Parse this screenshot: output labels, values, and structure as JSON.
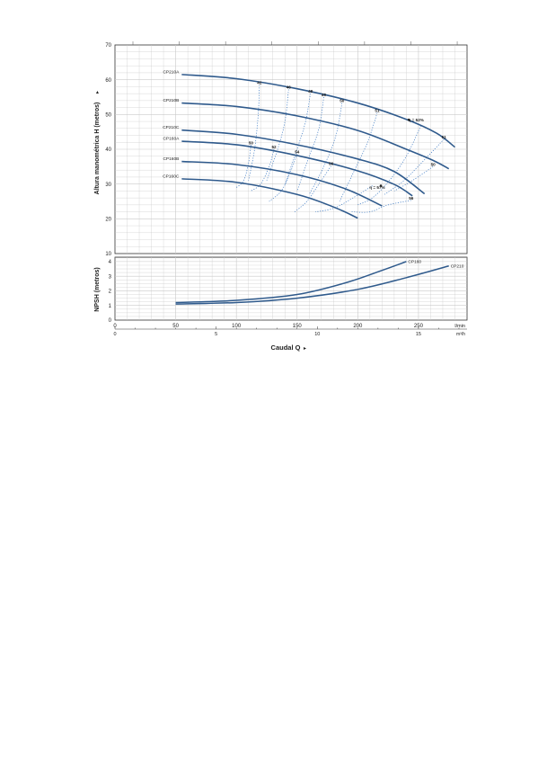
{
  "chart_data": [
    {
      "type": "line",
      "ylabel": "Altura manométrica H (metros)",
      "ylim": [
        10,
        70
      ],
      "xlim": [
        0,
        290
      ],
      "yticks": [
        10,
        20,
        30,
        40,
        50,
        60,
        70
      ],
      "grid": true,
      "colors": {
        "curve": "#2f5a8c",
        "efficiency": "#3a78c2",
        "grid": "#c9c9c9"
      },
      "series": [
        {
          "name": "CP210A",
          "points": [
            [
              55,
              61.5
            ],
            [
              100,
              60.3
            ],
            [
              150,
              57.4
            ],
            [
              200,
              53.3
            ],
            [
              240,
              48.6
            ],
            [
              265,
              44.6
            ],
            [
              280,
              40.6
            ]
          ]
        },
        {
          "name": "CP210B",
          "points": [
            [
              55,
              53.3
            ],
            [
              100,
              52.3
            ],
            [
              150,
              49.6
            ],
            [
              200,
              45.4
            ],
            [
              240,
              40.0
            ],
            [
              262,
              36.8
            ],
            [
              275,
              34.4
            ]
          ]
        },
        {
          "name": "CP210C",
          "points": [
            [
              55,
              45.5
            ],
            [
              100,
              44.3
            ],
            [
              150,
              41.3
            ],
            [
              200,
              37.2
            ],
            [
              230,
              33.6
            ],
            [
              255,
              27.2
            ]
          ]
        },
        {
          "name": "CP160A",
          "points": [
            [
              55,
              42.3
            ],
            [
              100,
              41.3
            ],
            [
              150,
              38.2
            ],
            [
              200,
              33.8
            ],
            [
              230,
              29.9
            ],
            [
              245,
              26.6
            ]
          ]
        },
        {
          "name": "CP160B",
          "points": [
            [
              55,
              36.5
            ],
            [
              100,
              35.6
            ],
            [
              150,
              32.7
            ],
            [
              190,
              28.6
            ],
            [
              220,
              23.7
            ]
          ]
        },
        {
          "name": "CP160C",
          "points": [
            [
              55,
              31.5
            ],
            [
              100,
              30.5
            ],
            [
              150,
              27.0
            ],
            [
              180,
              23.4
            ],
            [
              200,
              20.2
            ]
          ]
        }
      ],
      "efficiency_labels": [
        {
          "text": "42",
          "x": 119,
          "y": 58.5
        },
        {
          "text": "46",
          "x": 143,
          "y": 57.2
        },
        {
          "text": "48",
          "x": 161,
          "y": 56.0
        },
        {
          "text": "49",
          "x": 172,
          "y": 55.0
        },
        {
          "text": "50",
          "x": 187,
          "y": 53.3
        },
        {
          "text": "51",
          "x": 216,
          "y": 50.5
        },
        {
          "text": "η = 52%",
          "x": 248,
          "y": 47.8
        },
        {
          "text": "51",
          "x": 271,
          "y": 42.9
        },
        {
          "text": "50",
          "x": 262,
          "y": 35.0
        },
        {
          "text": "50",
          "x": 112,
          "y": 41.2
        },
        {
          "text": "52",
          "x": 131,
          "y": 40.0
        },
        {
          "text": "54",
          "x": 150,
          "y": 38.6
        },
        {
          "text": "56",
          "x": 178,
          "y": 35.2
        },
        {
          "text": "η = 57%",
          "x": 216,
          "y": 28.4
        },
        {
          "text": "56",
          "x": 244,
          "y": 25.3
        }
      ]
    },
    {
      "type": "line",
      "ylabel": "NPSH (metros)",
      "ylim": [
        0,
        4.3
      ],
      "xlim": [
        0,
        290
      ],
      "yticks": [
        0,
        1,
        2,
        3,
        4
      ],
      "xticks": [
        0,
        50,
        100,
        150,
        200,
        250
      ],
      "xunit": "l/min",
      "grid": true,
      "series": [
        {
          "name": "CP160",
          "points": [
            [
              50,
              1.2
            ],
            [
              100,
              1.35
            ],
            [
              150,
              1.75
            ],
            [
              190,
              2.55
            ],
            [
              220,
              3.4
            ],
            [
              240,
              4.0
            ]
          ]
        },
        {
          "name": "CP210",
          "points": [
            [
              50,
              1.1
            ],
            [
              100,
              1.2
            ],
            [
              150,
              1.5
            ],
            [
              200,
              2.1
            ],
            [
              240,
              2.9
            ],
            [
              275,
              3.7
            ]
          ]
        }
      ],
      "secondary_axis": {
        "ticks": [
          0,
          5,
          10,
          15
        ],
        "unit": "m³/h"
      },
      "xlabel": "Caudal Q"
    }
  ]
}
